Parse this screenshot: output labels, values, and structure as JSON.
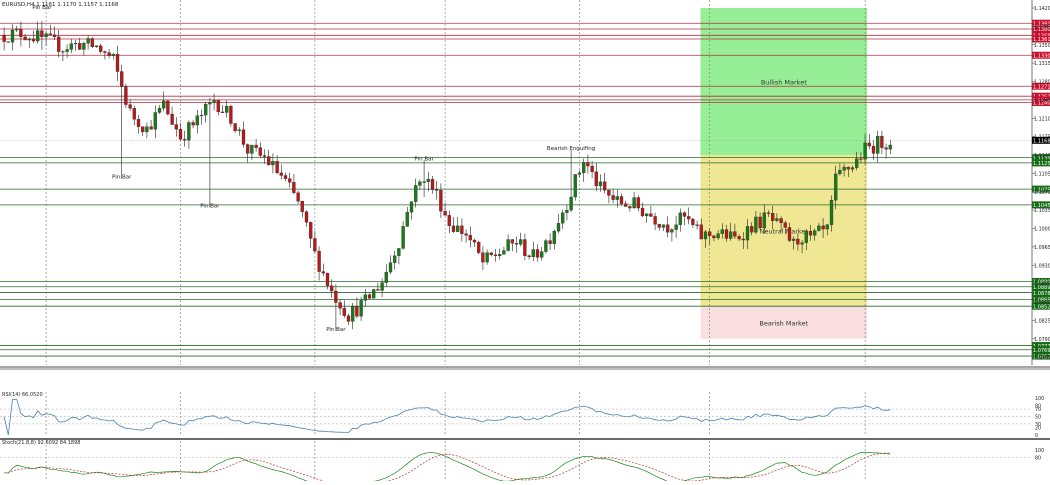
{
  "chart_data": {
    "type": "candlestick",
    "header": "EURUSD,H4  1.1161 1.1170 1.1157 1.1168",
    "price_axis": {
      "range": [
        1.074,
        1.142
      ],
      "ticks": [
        "1.1420",
        "1.1385",
        "1.1350",
        "1.1315",
        "1.1280",
        "1.1245",
        "1.1210",
        "1.1175",
        "1.1140",
        "1.1105",
        "1.1070",
        "1.1035",
        "1.1000",
        "1.0965",
        "1.0930",
        "1.0895",
        "1.0860",
        "1.0825",
        "1.0790",
        "1.0755"
      ],
      "tick_values": [
        1.142,
        1.1385,
        1.135,
        1.1315,
        1.128,
        1.1245,
        1.121,
        1.1175,
        1.114,
        1.1105,
        1.107,
        1.1035,
        1.1,
        1.0965,
        1.093,
        1.0895,
        1.086,
        1.0825,
        1.079,
        1.0755
      ],
      "current_price": "1.1168",
      "current_price_value": 1.1168
    },
    "levels": [
      {
        "value": 1.1391,
        "label": "1.1391",
        "kind": "resistance"
      },
      {
        "value": 1.138,
        "label": "1.1380",
        "kind": "resistance"
      },
      {
        "value": 1.1368,
        "label": "1.1368",
        "kind": "resistance"
      },
      {
        "value": 1.1361,
        "label": "1.1361",
        "kind": "resistance"
      },
      {
        "value": 1.133,
        "label": "1.1330",
        "kind": "resistance"
      },
      {
        "value": 1.1271,
        "label": "1.1271",
        "kind": "resistance"
      },
      {
        "value": 1.1252,
        "label": "1.1252",
        "kind": "resistance"
      },
      {
        "value": 1.1245,
        "label": "1.1245",
        "kind": "resistance"
      },
      {
        "value": 1.124,
        "label": "1.1240",
        "kind": "resistance"
      },
      {
        "value": 1.1135,
        "label": "1.1135",
        "kind": "support"
      },
      {
        "value": 1.1125,
        "label": "1.1125",
        "kind": "support"
      },
      {
        "value": 1.1075,
        "label": "1.1075",
        "kind": "support"
      },
      {
        "value": 1.1045,
        "label": "1.1045",
        "kind": "support"
      },
      {
        "value": 1.0899,
        "label": "1.0899",
        "kind": "support"
      },
      {
        "value": 1.0889,
        "label": "1.0889",
        "kind": "support"
      },
      {
        "value": 1.0878,
        "label": "1.0878",
        "kind": "support"
      },
      {
        "value": 1.0865,
        "label": "1.0865",
        "kind": "support"
      },
      {
        "value": 1.0852,
        "label": "1.0852",
        "kind": "support"
      },
      {
        "value": 1.0777,
        "label": "1.0777",
        "kind": "support"
      },
      {
        "value": 1.0769,
        "label": "1.0769",
        "kind": "support"
      },
      {
        "value": 1.0757,
        "label": "1.0757",
        "kind": "support"
      }
    ],
    "zones": [
      {
        "label": "Bullish Market",
        "top": 1.142,
        "bottom": 1.114,
        "color": "#90ee90"
      },
      {
        "label": "Neutral Market",
        "top": 1.114,
        "bottom": 1.0852,
        "color": "#eee68e"
      },
      {
        "label": "Bearish Market",
        "top": 1.0852,
        "bottom": 1.079,
        "color": "#f9dddd"
      }
    ],
    "annotations": [
      {
        "text": "Pin Bar",
        "bar": 9,
        "price": 1.1418
      },
      {
        "text": "Pin Bar",
        "bar": 28,
        "price": 1.1095
      },
      {
        "text": "Pin Bar",
        "bar": 49,
        "price": 1.104
      },
      {
        "text": "Pin Bar",
        "bar": 79,
        "price": 1.0805
      },
      {
        "text": "Pin Bar",
        "bar": 100,
        "price": 1.113
      },
      {
        "text": "Bearish Engulfing",
        "bar": 135,
        "price": 1.115
      }
    ],
    "bull_color": "#1a7a1a",
    "bear_color": "#b81a1a",
    "candles": [],
    "rsi": {
      "title": "RSI(14) 66.0520",
      "range": [
        0,
        100
      ],
      "ticks": [
        "100",
        "80",
        "70",
        "50",
        "30",
        "20",
        "0"
      ],
      "tick_values": [
        100,
        80,
        70,
        50,
        30,
        20,
        0
      ],
      "levels": [
        70,
        50,
        30
      ],
      "values": [],
      "color": "#4a7fb5"
    },
    "stochastic": {
      "title": "Stoch(21,8,8) 92.6092 84.1898",
      "range": [
        0,
        100
      ],
      "ticks": [
        "100",
        "80"
      ],
      "tick_values": [
        100,
        80
      ],
      "main_color": "#1a8a1a",
      "signal_color": "#c03030",
      "main_values": [],
      "signal_values": []
    }
  }
}
